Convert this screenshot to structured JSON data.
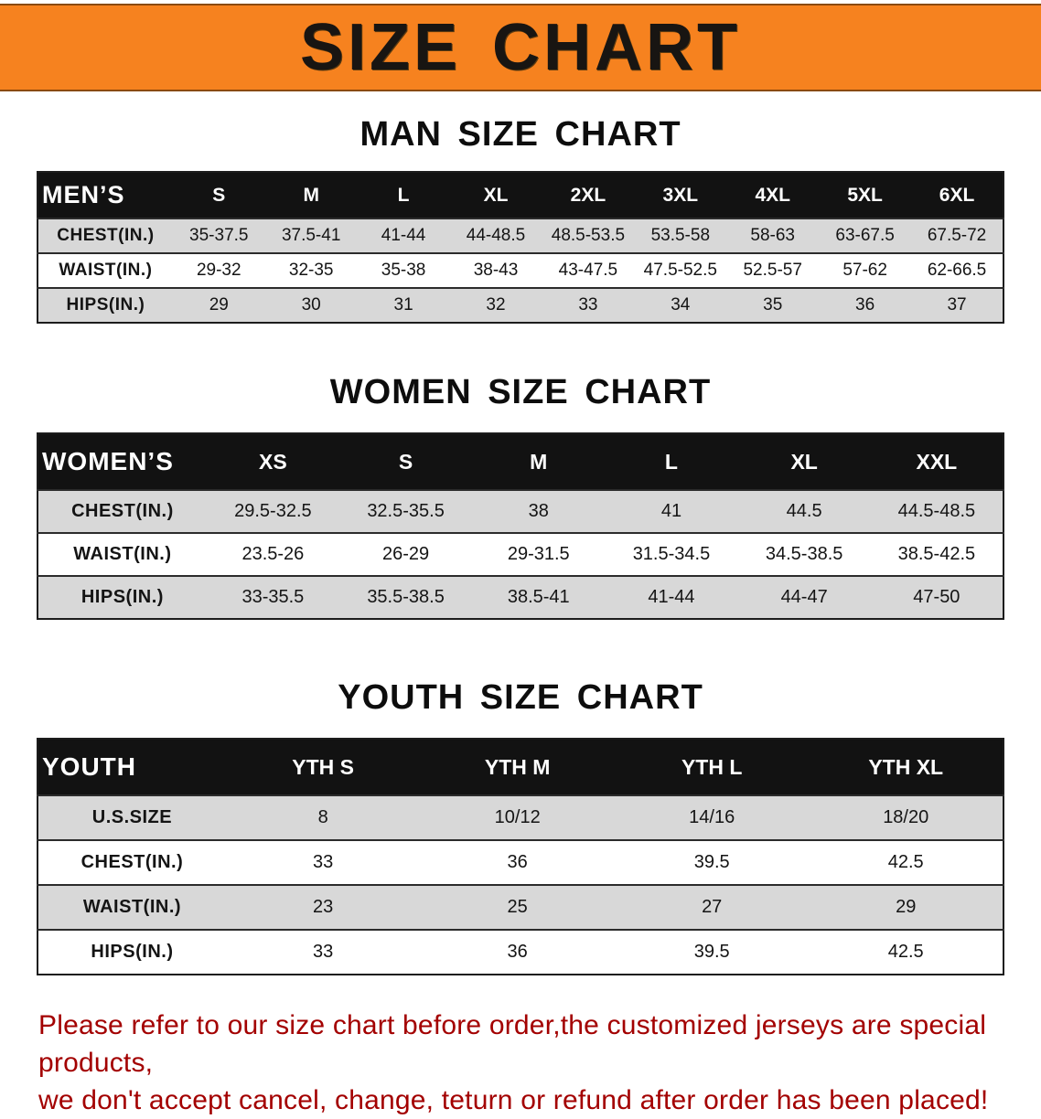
{
  "banner": {
    "title": "SIZE CHART"
  },
  "colors": {
    "banner_bg": "#F6821F",
    "banner_text": "#181512",
    "header_bar_bg": "#121212",
    "header_bar_text": "#ffffff",
    "row_stripe": "#d8d8d8",
    "disclaimer_text": "#a30000"
  },
  "tables": {
    "men": {
      "heading": "MAN SIZE CHART",
      "header_label": "MEN’S",
      "columns": [
        "S",
        "M",
        "L",
        "XL",
        "2XL",
        "3XL",
        "4XL",
        "5XL",
        "6XL"
      ],
      "rows": [
        {
          "label": "CHEST(IN.)",
          "values": [
            "35-37.5",
            "37.5-41",
            "41-44",
            "44-48.5",
            "48.5-53.5",
            "53.5-58",
            "58-63",
            "63-67.5",
            "67.5-72"
          ]
        },
        {
          "label": "WAIST(IN.)",
          "values": [
            "29-32",
            "32-35",
            "35-38",
            "38-43",
            "43-47.5",
            "47.5-52.5",
            "52.5-57",
            "57-62",
            "62-66.5"
          ]
        },
        {
          "label": "HIPS(IN.)",
          "values": [
            "29",
            "30",
            "31",
            "32",
            "33",
            "34",
            "35",
            "36",
            "37"
          ]
        }
      ]
    },
    "women": {
      "heading": "WOMEN SIZE CHART",
      "header_label": "WOMEN’S",
      "columns": [
        "XS",
        "S",
        "M",
        "L",
        "XL",
        "XXL"
      ],
      "rows": [
        {
          "label": "CHEST(IN.)",
          "values": [
            "29.5-32.5",
            "32.5-35.5",
            "38",
            "41",
            "44.5",
            "44.5-48.5"
          ]
        },
        {
          "label": "WAIST(IN.)",
          "values": [
            "23.5-26",
            "26-29",
            "29-31.5",
            "31.5-34.5",
            "34.5-38.5",
            "38.5-42.5"
          ]
        },
        {
          "label": "HIPS(IN.)",
          "values": [
            "33-35.5",
            "35.5-38.5",
            "38.5-41",
            "41-44",
            "44-47",
            "47-50"
          ]
        }
      ]
    },
    "youth": {
      "heading": "YOUTH SIZE CHART",
      "header_label": "YOUTH",
      "columns": [
        "YTH S",
        "YTH M",
        "YTH L",
        "YTH XL"
      ],
      "rows": [
        {
          "label": "U.S.SIZE",
          "values": [
            "8",
            "10/12",
            "14/16",
            "18/20"
          ]
        },
        {
          "label": "CHEST(IN.)",
          "values": [
            "33",
            "36",
            "39.5",
            "42.5"
          ]
        },
        {
          "label": "WAIST(IN.)",
          "values": [
            "23",
            "25",
            "27",
            "29"
          ]
        },
        {
          "label": "HIPS(IN.)",
          "values": [
            "33",
            "36",
            "39.5",
            "42.5"
          ]
        }
      ]
    }
  },
  "disclaimer": {
    "line1": "Please refer to our size chart before order,the customized jerseys are special products,",
    "line2": "we don't accept cancel, change, teturn or refund after order has been placed!"
  }
}
